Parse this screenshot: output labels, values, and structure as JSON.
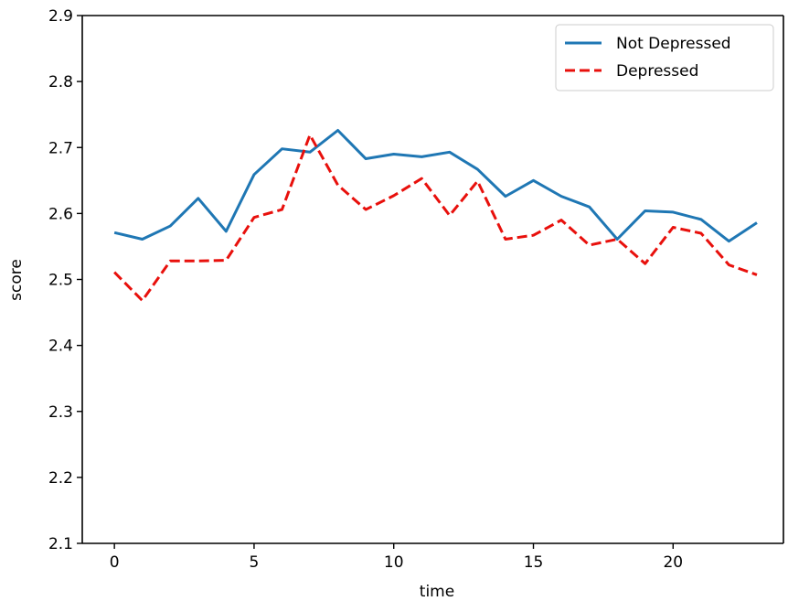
{
  "chart_data": {
    "type": "line",
    "title": "",
    "xlabel": "time",
    "ylabel": "score",
    "xlim": [
      -1.15,
      23.95
    ],
    "ylim": [
      2.1,
      2.9
    ],
    "xticks": [
      0,
      5,
      10,
      15,
      20
    ],
    "yticks": [
      2.1,
      2.2,
      2.3,
      2.4,
      2.5,
      2.6,
      2.7,
      2.8,
      2.9
    ],
    "grid": false,
    "legend_position": "top-right",
    "x": [
      0,
      1,
      2,
      3,
      4,
      5,
      6,
      7,
      8,
      9,
      10,
      11,
      12,
      13,
      14,
      15,
      16,
      17,
      18,
      19,
      20,
      21,
      22,
      23
    ],
    "series": [
      {
        "name": "Not Depressed",
        "color": "#1f77b4",
        "style": "solid",
        "values": [
          2.571,
          2.561,
          2.581,
          2.623,
          2.573,
          2.659,
          2.698,
          2.693,
          2.726,
          2.683,
          2.69,
          2.686,
          2.693,
          2.667,
          2.626,
          2.65,
          2.626,
          2.61,
          2.561,
          2.604,
          2.602,
          2.591,
          2.558,
          2.586
        ]
      },
      {
        "name": "Depressed",
        "color": "#e8100c",
        "style": "dashed",
        "values": [
          2.511,
          2.468,
          2.528,
          2.528,
          2.529,
          2.594,
          2.606,
          2.719,
          2.643,
          2.606,
          2.627,
          2.653,
          2.597,
          2.649,
          2.561,
          2.567,
          2.59,
          2.552,
          2.561,
          2.524,
          2.579,
          2.57,
          2.522,
          2.507
        ]
      }
    ]
  }
}
